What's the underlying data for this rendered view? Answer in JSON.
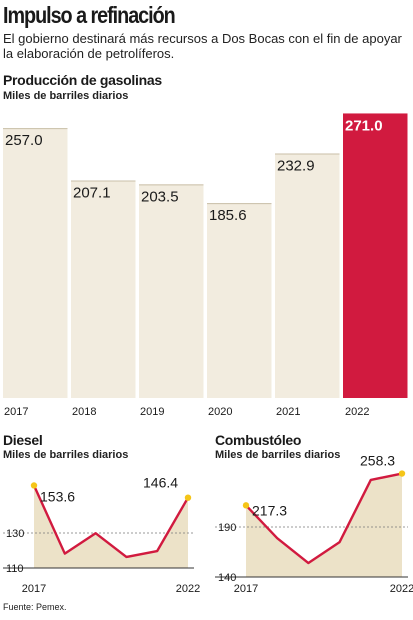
{
  "headline": "Impulso a refinación",
  "subhead": "El gobierno destinará más recursos a Dos Bocas con el fin de apoyar la elaboración de petrolíferos.",
  "source": "Fuente: Pemex.",
  "colors": {
    "bar": "#f2ecdf",
    "highlight": "#d11a3f",
    "line": "#d11a3f",
    "fill": "#ece2c8",
    "marker": "#f5c518"
  },
  "chart_data": [
    {
      "type": "bar",
      "title": "Producción de gasolinas",
      "subtitle": "Miles de barriles diarios",
      "categories": [
        "2017",
        "2018",
        "2019",
        "2020",
        "2021",
        "2022"
      ],
      "values": [
        257.0,
        207.1,
        203.5,
        185.6,
        232.9,
        271.0
      ],
      "labels": [
        "257.0",
        "207.1",
        "203.5",
        "185.6",
        "232.9",
        "271.0"
      ],
      "ylim": [
        0,
        280
      ],
      "highlight_index": 5
    },
    {
      "type": "line",
      "title": "Diesel",
      "subtitle": "Miles de barriles diarios",
      "x": [
        "2017",
        "2018",
        "2019",
        "2020",
        "2021",
        "2022"
      ],
      "x_tick_labels": [
        "2017",
        "",
        "",
        "",
        "",
        "2022"
      ],
      "values": [
        153.6,
        113.5,
        125.5,
        111.5,
        115.0,
        146.4
      ],
      "point_labels": [
        "153.6",
        "",
        "",
        "",
        "",
        "146.4"
      ],
      "y_ticks": [
        "130",
        "110"
      ],
      "ylim": [
        105,
        158
      ]
    },
    {
      "type": "line",
      "title": "Combustóleo",
      "subtitle": "Miles de barriles diarios",
      "x": [
        "2017",
        "2018",
        "2019",
        "2020",
        "2021",
        "2022"
      ],
      "x_tick_labels": [
        "2017",
        "",
        "",
        "",
        "",
        "2022"
      ],
      "values": [
        217.3,
        175.0,
        143.0,
        170.0,
        250.0,
        258.3
      ],
      "point_labels": [
        "217.3",
        "",
        "",
        "",
        "",
        "258.3"
      ],
      "y_ticks": [
        "190",
        "140"
      ],
      "ylim": [
        125,
        268
      ]
    }
  ]
}
